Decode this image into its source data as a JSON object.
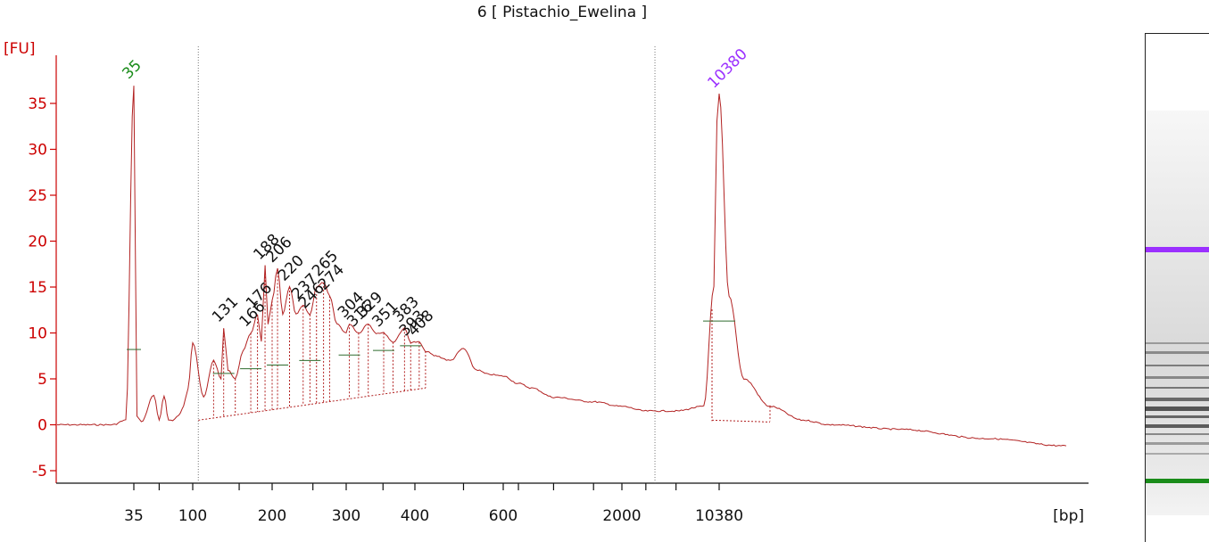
{
  "title": "6  [ Pistachio_Ewelina ]",
  "chart_data": {
    "type": "line",
    "title": "6  [ Pistachio_Ewelina ]",
    "ylabel": "[FU]",
    "xlabel": "[bp]",
    "ylim": [
      -6,
      39
    ],
    "yticks": [
      -5,
      0,
      5,
      10,
      15,
      20,
      25,
      30,
      35
    ],
    "xticks": [
      "35",
      "100",
      "200",
      "300",
      "400",
      "600",
      "2000",
      "10380"
    ],
    "x_scale": "nonlinear (electropherogram, ladder-calibrated)",
    "colors": {
      "trace": "#b22222",
      "axis": "#cc0000",
      "lower_marker": "#1a8c1a",
      "upper_marker": "#9b30ff",
      "peak_labels": "#111111"
    },
    "series": [
      {
        "x": [
          20,
          30,
          33,
          35,
          37,
          40,
          50,
          55,
          60,
          65,
          70,
          78,
          85,
          92,
          100,
          110,
          120,
          128,
          131,
          136,
          145,
          155,
          166,
          176,
          182,
          188,
          193,
          200,
          206,
          212,
          220,
          228,
          237,
          246,
          255,
          265,
          274,
          285,
          300,
          304,
          316,
          329,
          340,
          351,
          365,
          383,
          393,
          408,
          420,
          440,
          470,
          500,
          530,
          560,
          600,
          700,
          800,
          1000,
          1500,
          2000,
          3000,
          5000,
          8000,
          9500,
          10000,
          10380,
          11000,
          12000,
          14000,
          17000,
          20000,
          30000,
          50000,
          80000
        ],
        "values": [
          0,
          0,
          0.5,
          37,
          1,
          0.3,
          3.2,
          0.5,
          3.2,
          0.5,
          0.5,
          1,
          2,
          4,
          9,
          3,
          7,
          5,
          10.5,
          6,
          5,
          8,
          10,
          12,
          9,
          17.3,
          11,
          13.5,
          17,
          12,
          15,
          12,
          13,
          12,
          15,
          15.5,
          14,
          11,
          10,
          11,
          10,
          11,
          10,
          10,
          9,
          10.5,
          9,
          9,
          8,
          7.5,
          7,
          8.3,
          6,
          5.5,
          5.3,
          4.5,
          4,
          3,
          2.5,
          2,
          1.5,
          1.5,
          2,
          15,
          33,
          36,
          14,
          5,
          2,
          0.5,
          0,
          -0.5,
          -1.5,
          -2.3
        ]
      }
    ],
    "peak_labels": [
      "35",
      "10380",
      "131",
      "166",
      "176",
      "188",
      "206",
      "220",
      "237",
      "246",
      "265",
      "274",
      "304",
      "316",
      "329",
      "351",
      "383",
      "393",
      "408"
    ],
    "markers": {
      "lower": "35",
      "upper": "10380"
    }
  }
}
